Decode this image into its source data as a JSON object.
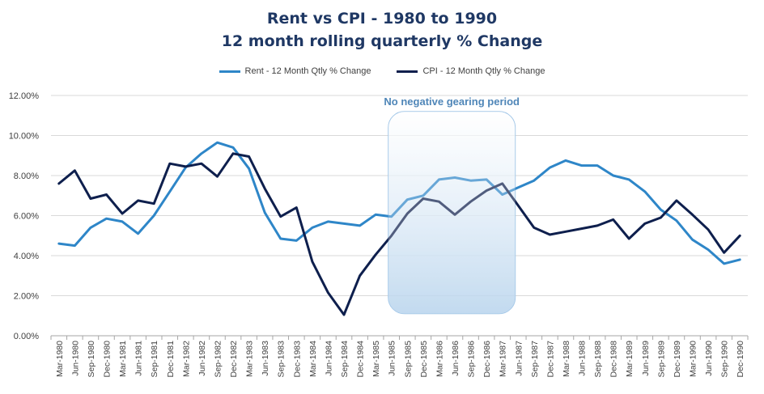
{
  "chart_data": {
    "type": "line",
    "title": "Rent vs CPI - 1980 to 1990",
    "subtitle": "12 month rolling quarterly % Change",
    "ylim": [
      0,
      12
    ],
    "yticks": [
      "0.00%",
      "2.00%",
      "4.00%",
      "6.00%",
      "8.00%",
      "10.00%",
      "12.00%"
    ],
    "grid": true,
    "legend_position": "top-center",
    "annotation": "No negative gearing period",
    "shaded_range": [
      "Jun-1985",
      "Mar-1987"
    ],
    "categories": [
      "Mar-1980",
      "Jun-1980",
      "Sep-1980",
      "Dec-1980",
      "Mar-1981",
      "Jun-1981",
      "Sep-1981",
      "Dec-1981",
      "Mar-1982",
      "Jun-1982",
      "Sep-1982",
      "Dec-1982",
      "Mar-1983",
      "Jun-1983",
      "Sep-1983",
      "Dec-1983",
      "Mar-1984",
      "Jun-1984",
      "Sep-1984",
      "Dec-1984",
      "Mar-1985",
      "Jun-1985",
      "Sep-1985",
      "Dec-1985",
      "Mar-1986",
      "Jun-1986",
      "Sep-1986",
      "Dec-1986",
      "Mar-1987",
      "Jun-1987",
      "Sep-1987",
      "Dec-1987",
      "Mar-1988",
      "Jun-1988",
      "Sep-1988",
      "Dec-1988",
      "Mar-1989",
      "Jun-1989",
      "Sep-1989",
      "Dec-1989",
      "Mar-1990",
      "Jun-1990",
      "Sep-1990",
      "Dec-1990"
    ],
    "series": [
      {
        "name": "Rent - 12 Month Qtly % Change",
        "color": "#2e86c8",
        "values": [
          4.6,
          4.5,
          5.4,
          5.85,
          5.7,
          5.1,
          6.0,
          7.2,
          8.4,
          9.1,
          9.65,
          9.4,
          8.35,
          6.15,
          4.85,
          4.75,
          5.4,
          5.7,
          5.6,
          5.5,
          6.05,
          5.95,
          6.8,
          7.0,
          7.8,
          7.9,
          7.75,
          7.8,
          7.05,
          7.4,
          7.75,
          8.4,
          8.75,
          8.5,
          8.5,
          8.0,
          7.8,
          7.2,
          6.3,
          5.75,
          4.8,
          4.3,
          3.6,
          3.8
        ]
      },
      {
        "name": "CPI - 12 Month Qtly % Change",
        "color": "#0e1f4d",
        "values": [
          7.6,
          8.25,
          6.85,
          7.05,
          6.1,
          6.75,
          6.6,
          8.6,
          8.45,
          8.6,
          7.95,
          9.1,
          8.95,
          7.35,
          5.95,
          6.4,
          3.7,
          2.15,
          1.05,
          3.0,
          4.05,
          5.0,
          6.1,
          6.85,
          6.7,
          6.05,
          6.7,
          7.25,
          7.6,
          6.5,
          5.4,
          5.05,
          5.2,
          5.35,
          5.5,
          5.8,
          4.85,
          5.6,
          5.9,
          6.75,
          6.05,
          5.3,
          4.15,
          5.0
        ]
      }
    ]
  }
}
